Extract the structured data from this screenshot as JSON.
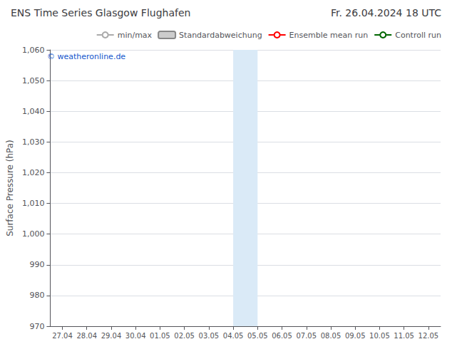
{
  "chart_data": {
    "type": "line",
    "title": "ENS Time Series Glasgow Flughafen",
    "subtitle": "Fr. 26.04.2024 18 UTC",
    "ylabel": "Surface Pressure (hPa)",
    "ylim": [
      970,
      1060
    ],
    "yticks": [
      970,
      980,
      990,
      1000,
      1010,
      1020,
      1030,
      1040,
      1050,
      1060
    ],
    "categories": [
      "27.04",
      "28.04",
      "29.04",
      "30.04",
      "01.05",
      "02.05",
      "03.05",
      "04.05",
      "05.05",
      "06.05",
      "07.05",
      "08.05",
      "09.05",
      "10.05",
      "11.05",
      "12.05"
    ],
    "series": [
      {
        "name": "min/max",
        "color": "#aaaaaa",
        "type": "errorbar",
        "values": [
          null,
          null,
          null,
          null,
          null,
          null,
          null,
          null,
          null,
          null,
          null,
          null,
          null,
          null,
          null,
          null
        ]
      },
      {
        "name": "Standardabweichung",
        "color": "#cccccc",
        "type": "span",
        "values": [
          null,
          null,
          null,
          null,
          null,
          null,
          null,
          null,
          null,
          null,
          null,
          null,
          null,
          null,
          null,
          null
        ]
      },
      {
        "name": "Ensemble mean run",
        "color": "#ff0000",
        "type": "line",
        "values": [
          null,
          null,
          null,
          null,
          null,
          null,
          null,
          null,
          null,
          null,
          null,
          null,
          null,
          null,
          null,
          null
        ]
      },
      {
        "name": "Controll run",
        "color": "#006600",
        "type": "line",
        "values": [
          null,
          null,
          null,
          null,
          null,
          null,
          null,
          null,
          null,
          null,
          null,
          null,
          null,
          null,
          null,
          null
        ]
      }
    ],
    "shaded_bands": [
      [
        "27.04",
        "27.04"
      ],
      [
        "29.04",
        "29.04"
      ],
      [
        "04.05",
        "05.05"
      ],
      [
        "06.05",
        "06.05"
      ],
      [
        "11.05",
        "11.05"
      ],
      [
        "12.05",
        "12.05"
      ]
    ],
    "band_color": "#daeaf7",
    "annotations": [
      {
        "text": "© weatheronline.de",
        "color": "#1155cc"
      }
    ],
    "grid": true,
    "legend": "upper right"
  }
}
